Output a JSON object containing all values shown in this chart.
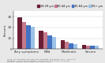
{
  "groups": [
    "Any symptoms",
    "Mild",
    "Moderate",
    "Severe"
  ],
  "age_labels": [
    "18-29 yrs",
    "30-44 yrs",
    "45-64 yrs",
    "65+ yrs"
  ],
  "colors": [
    "#6b1f35",
    "#c47a8a",
    "#4472c4",
    "#9dc3e6"
  ],
  "values": [
    [
      29.5,
      25.0,
      22.0,
      20.5
    ],
    [
      17.0,
      15.5,
      12.5,
      11.5
    ],
    [
      8.5,
      6.5,
      5.5,
      5.0
    ],
    [
      4.0,
      3.5,
      3.0,
      3.0
    ]
  ],
  "ylim": [
    0,
    35
  ],
  "yticks": [
    0,
    10,
    20,
    30
  ],
  "ylabel": "Percent",
  "background_color": "#e8e8e8",
  "plot_bg": "#ffffff"
}
